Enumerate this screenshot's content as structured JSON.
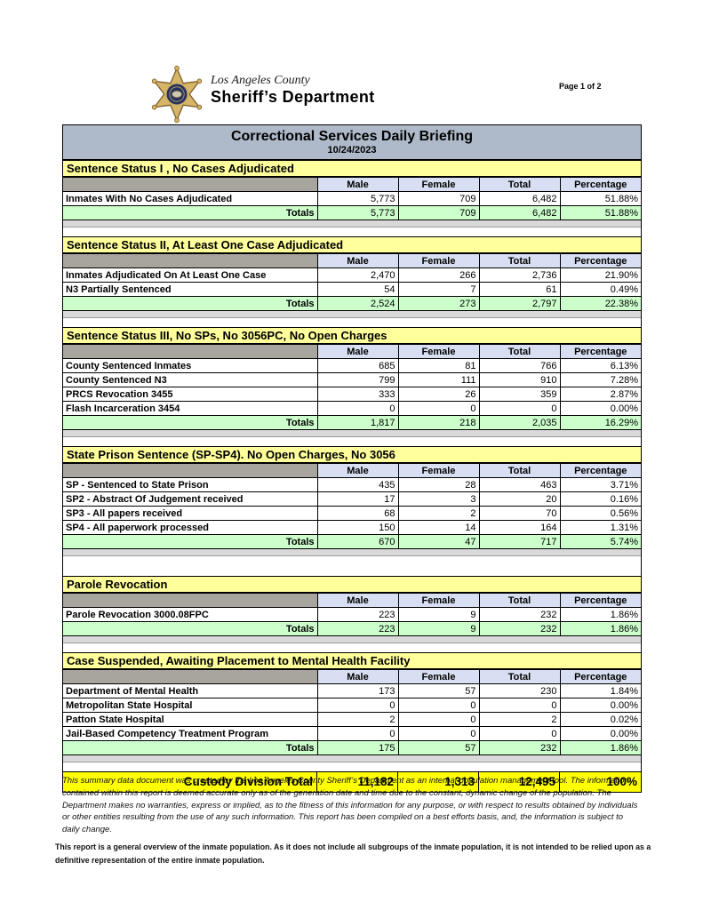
{
  "page": {
    "number_label": "Page 1 of 2"
  },
  "logo": {
    "county": "Los Angeles County",
    "department": "Sheriff’s Department"
  },
  "icons": {
    "badge": "sheriff-star-badge-icon"
  },
  "title": {
    "heading": "Correctional Services Daily Briefing",
    "date": "10/24/2023"
  },
  "table": {
    "columns": [
      "Male",
      "Female",
      "Total",
      "Percentage"
    ],
    "totals_label": "Totals"
  },
  "sections": [
    {
      "title": "Sentence Status I , No Cases Adjudicated",
      "rows": [
        {
          "label": "Inmates With No Cases Adjudicated",
          "male": "5,773",
          "female": "709",
          "total": "6,482",
          "percentage": "51.88%"
        }
      ],
      "totals": {
        "male": "5,773",
        "female": "709",
        "total": "6,482",
        "percentage": "51.88%"
      }
    },
    {
      "title": "Sentence Status II, At Least One Case Adjudicated",
      "rows": [
        {
          "label": "Inmates Adjudicated On At Least One Case",
          "male": "2,470",
          "female": "266",
          "total": "2,736",
          "percentage": "21.90%"
        },
        {
          "label": "N3 Partially Sentenced",
          "male": "54",
          "female": "7",
          "total": "61",
          "percentage": "0.49%"
        }
      ],
      "totals": {
        "male": "2,524",
        "female": "273",
        "total": "2,797",
        "percentage": "22.38%"
      }
    },
    {
      "title": "Sentence Status III, No SPs, No 3056PC, No Open Charges",
      "rows": [
        {
          "label": "County Sentenced Inmates",
          "male": "685",
          "female": "81",
          "total": "766",
          "percentage": "6.13%"
        },
        {
          "label": "County Sentenced N3",
          "male": "799",
          "female": "111",
          "total": "910",
          "percentage": "7.28%"
        },
        {
          "label": "PRCS Revocation 3455",
          "male": "333",
          "female": "26",
          "total": "359",
          "percentage": "2.87%"
        },
        {
          "label": "Flash Incarceration 3454",
          "male": "0",
          "female": "0",
          "total": "0",
          "percentage": "0.00%"
        }
      ],
      "totals": {
        "male": "1,817",
        "female": "218",
        "total": "2,035",
        "percentage": "16.29%"
      }
    },
    {
      "title": "State Prison Sentence (SP-SP4). No Open Charges, No 3056",
      "rows": [
        {
          "label": "SP - Sentenced to State Prison",
          "male": "435",
          "female": "28",
          "total": "463",
          "percentage": "3.71%"
        },
        {
          "label": "SP2 - Abstract Of Judgement received",
          "male": "17",
          "female": "3",
          "total": "20",
          "percentage": "0.16%"
        },
        {
          "label": "SP3 - All papers received",
          "male": "68",
          "female": "2",
          "total": "70",
          "percentage": "0.56%"
        },
        {
          "label": "SP4 - All paperwork processed",
          "male": "150",
          "female": "14",
          "total": "164",
          "percentage": "1.31%"
        }
      ],
      "totals": {
        "male": "670",
        "female": "47",
        "total": "717",
        "percentage": "5.74%"
      }
    },
    {
      "title": "Parole Revocation",
      "rows": [
        {
          "label": "Parole Revocation 3000.08FPC",
          "male": "223",
          "female": "9",
          "total": "232",
          "percentage": "1.86%"
        }
      ],
      "totals": {
        "male": "223",
        "female": "9",
        "total": "232",
        "percentage": "1.86%"
      }
    },
    {
      "title": "Case Suspended, Awaiting Placement to Mental Health Facility",
      "rows": [
        {
          "label": "Department of Mental Health",
          "male": "173",
          "female": "57",
          "total": "230",
          "percentage": "1.84%"
        },
        {
          "label": "Metropolitan State Hospital",
          "male": "0",
          "female": "0",
          "total": "0",
          "percentage": "0.00%"
        },
        {
          "label": "Patton State Hospital",
          "male": "2",
          "female": "0",
          "total": "2",
          "percentage": "0.02%"
        },
        {
          "label": "Jail-Based Competency Treatment Program",
          "male": "0",
          "female": "0",
          "total": "0",
          "percentage": "0.00%"
        }
      ],
      "totals": {
        "male": "175",
        "female": "57",
        "total": "232",
        "percentage": "1.86%"
      }
    }
  ],
  "grand_total": {
    "label": "Custody Division Total",
    "male": "11,182",
    "female": "1,313",
    "total": "12,495",
    "percentage": "100%"
  },
  "footer": {
    "disclaimer": "This summary data document was created by the Los Angeles County Sheriff’s Department as an internal population management tool.  The information contained within this report is deemed accurate only as of the generation date and time due to the constant, dynamic change of the population.  The Department makes no warranties, express or implied, as to the fitness of this information for any purpose, or with respect to results obtained by individuals or other entities resulting from the use of any such information.  This report has been compiled on a best efforts basis, and, the information is subject to daily change.",
    "note": "This report is a general overview of the inmate population.  As it does not include all subgroups of the inmate population, it is not intended to be relied upon as a definitive representation of the entire inmate population."
  },
  "colors": {
    "title_bar": "#aeb9c9",
    "section_header": "#ffff9c",
    "column_header": "#d9dff2",
    "header_blank": "#a8a49e",
    "totals_row": "#ccffcc",
    "grand_total": "#ffff00",
    "spacer": "#d9d9d9",
    "star_gold": "#d6b468",
    "star_outline": "#7a5f28",
    "star_navy": "#28325c"
  }
}
